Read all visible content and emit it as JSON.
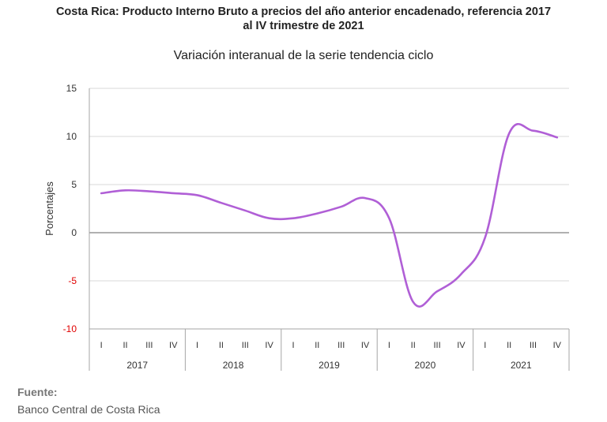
{
  "header": {
    "title_line1": "Costa Rica: Producto Interno Bruto a precios del año anterior encadenado, referencia 2017",
    "title_line2": "al IV trimestre de 2021"
  },
  "chart_data": {
    "type": "line",
    "subtitle": "Variación interanual de la serie tendencia ciclo",
    "ylabel": "Porcentajes",
    "ylim": [
      -10,
      15
    ],
    "yticks": [
      -10,
      -5,
      0,
      5,
      10,
      15
    ],
    "negative_tick_color": "#e00000",
    "line_color": "#b05fd6",
    "grid": true,
    "years": [
      "2017",
      "2018",
      "2019",
      "2020",
      "2021"
    ],
    "quarters": [
      "I",
      "II",
      "III",
      "IV"
    ],
    "series": [
      {
        "values": [
          4.1,
          4.4,
          4.3,
          4.1,
          3.9,
          3.1,
          2.3,
          1.5,
          1.5,
          2.0,
          2.7,
          3.6,
          1.5,
          -7.2,
          -6.1,
          -4.3,
          -0.5,
          10.3,
          10.6,
          9.9
        ]
      }
    ]
  },
  "source": {
    "label": "Fuente:",
    "text": "Banco Central de Costa Rica"
  }
}
